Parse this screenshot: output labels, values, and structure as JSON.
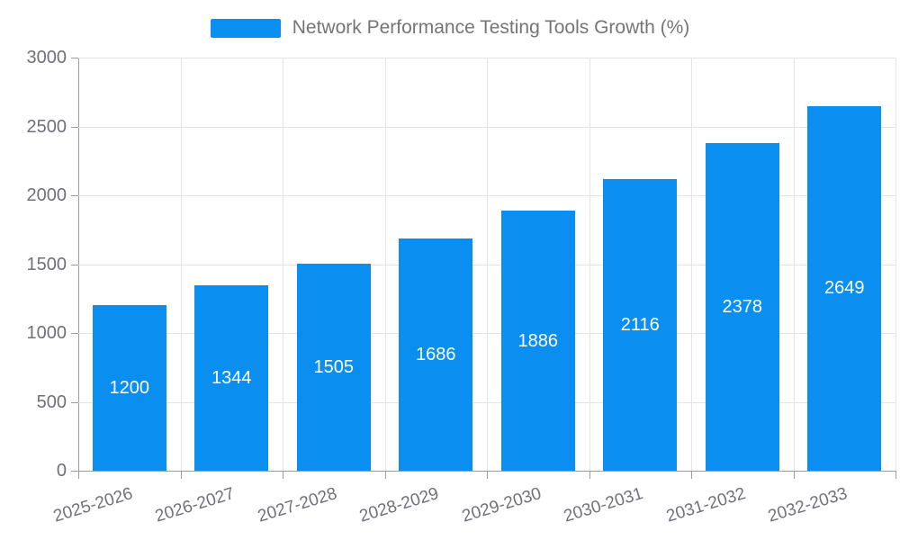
{
  "chart_data": {
    "type": "bar",
    "title": "Network Performance Testing Tools Growth (%)",
    "categories": [
      "2025-2026",
      "2026-2027",
      "2027-2028",
      "2028-2029",
      "2029-2030",
      "2030-2031",
      "2031-2032",
      "2032-2033"
    ],
    "values": [
      1200,
      1344,
      1505,
      1686,
      1886,
      2116,
      2378,
      2649
    ],
    "xlabel": "",
    "ylabel": "",
    "ylim": [
      0,
      3000
    ],
    "yticks": [
      0,
      500,
      1000,
      1500,
      2000,
      2500,
      3000
    ],
    "grid": true,
    "legend_position": "top-center",
    "value_labels_inside_bars": true
  },
  "colors": {
    "bar": "#0a8ff0",
    "value_label": "#ffffff",
    "axis": "#9b9ba1",
    "grid": "#e3e3e8",
    "tick_label": "#70707a",
    "legend_text": "#757575",
    "background": "#ffffff"
  }
}
